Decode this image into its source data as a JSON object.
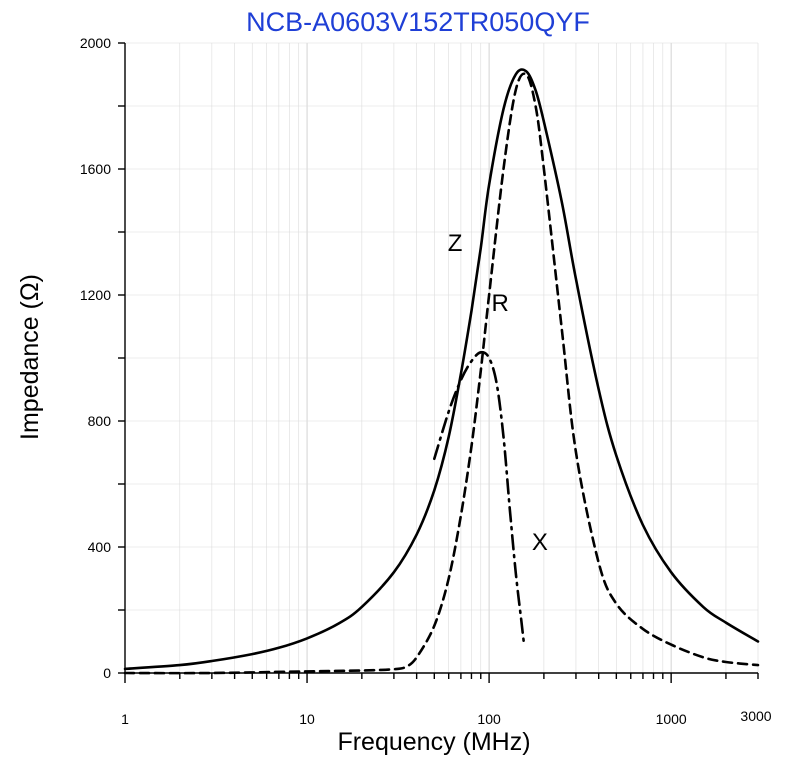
{
  "chart_data": {
    "type": "line",
    "title": "NCB-A0603V152TR050QYF",
    "xlabel": "Frequency (MHz)",
    "ylabel": "Impedance (Ω)",
    "xscale": "log",
    "xlim": [
      1,
      3000
    ],
    "ylim": [
      0,
      2000
    ],
    "grid": true,
    "x_ticks": [
      1,
      10,
      100,
      1000,
      3000
    ],
    "x_tick_labels": [
      "1",
      "10",
      "100",
      "1000",
      "3000"
    ],
    "y_ticks": [
      0,
      400,
      800,
      1200,
      1600,
      2000
    ],
    "y_tick_labels": [
      "0",
      "400",
      "800",
      "1200",
      "1600",
      "2000"
    ],
    "series": [
      {
        "name": "Z",
        "style": "solid",
        "x": [
          1,
          2,
          3,
          5,
          7,
          10,
          15,
          20,
          30,
          40,
          50,
          60,
          70,
          80,
          90,
          100,
          120,
          140,
          160,
          180,
          200,
          250,
          300,
          400,
          500,
          700,
          1000,
          1500,
          2000,
          3000
        ],
        "y": [
          13,
          25,
          38,
          60,
          80,
          110,
          158,
          210,
          320,
          440,
          580,
          750,
          950,
          1150,
          1350,
          1550,
          1790,
          1900,
          1910,
          1850,
          1750,
          1500,
          1250,
          900,
          690,
          470,
          320,
          210,
          160,
          100
        ]
      },
      {
        "name": "R",
        "style": "dashed",
        "x": [
          1,
          3,
          10,
          20,
          30,
          35,
          40,
          50,
          60,
          70,
          80,
          90,
          100,
          120,
          140,
          160,
          180,
          200,
          250,
          300,
          400,
          500,
          700,
          1000,
          1500,
          2000,
          3000
        ],
        "y": [
          0,
          0,
          5,
          8,
          12,
          20,
          50,
          150,
          300,
          500,
          720,
          960,
          1200,
          1600,
          1850,
          1900,
          1800,
          1600,
          1100,
          700,
          350,
          220,
          140,
          90,
          50,
          35,
          25
        ]
      },
      {
        "name": "X",
        "style": "dash-dot",
        "x": [
          50,
          60,
          70,
          80,
          90,
          100,
          110,
          120,
          130,
          140,
          150,
          155
        ],
        "y": [
          680,
          830,
          930,
          990,
          1018,
          1000,
          920,
          750,
          520,
          320,
          170,
          100
        ]
      }
    ],
    "curve_labels": [
      {
        "text": "Z",
        "x": 65,
        "y": 1340
      },
      {
        "text": "R",
        "x": 115,
        "y": 1150
      },
      {
        "text": "X",
        "x": 190,
        "y": 390
      }
    ]
  }
}
